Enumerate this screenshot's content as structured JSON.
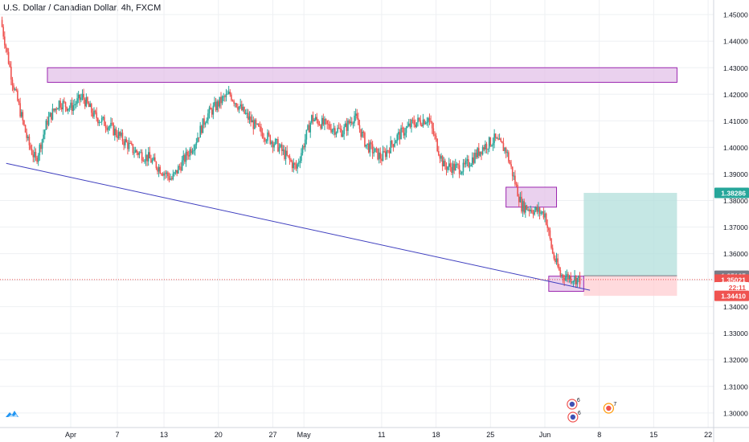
{
  "header": {
    "symbol_title": "U.S. Dollar / Canadian Dollar, 4h, FXCM"
  },
  "colors": {
    "up": "#26a69a",
    "down": "#ef5350",
    "zone_fill": "#e1bee7",
    "zone_stroke": "#9c27b0",
    "trendline": "#3f3fbf",
    "target_fill": "#b2dfdb",
    "stop_fill": "#ffcdd2",
    "grid": "#eef0f3",
    "axis_text": "#131722"
  },
  "chart_data": {
    "type": "candlestick",
    "y_axis": {
      "ylim": [
        1.2945,
        1.4555
      ],
      "ticks": [
        "1.45000",
        "1.44000",
        "1.43000",
        "1.42000",
        "1.41000",
        "1.40000",
        "1.39000",
        "1.38000",
        "1.37000",
        "1.36000",
        "1.35000",
        "1.34000",
        "1.33000",
        "1.32000",
        "1.31000",
        "1.30000"
      ],
      "tick_values": [
        1.45,
        1.44,
        1.43,
        1.42,
        1.41,
        1.4,
        1.39,
        1.38,
        1.37,
        1.36,
        1.35,
        1.34,
        1.33,
        1.32,
        1.31,
        1.3
      ]
    },
    "x_axis": {
      "ticks": [
        "Apr",
        "7",
        "13",
        "20",
        "27",
        "May",
        "11",
        "18",
        "25",
        "Jun",
        "8",
        "15",
        "22"
      ],
      "tick_days": [
        0,
        6,
        12,
        19,
        26,
        30,
        40,
        47,
        54,
        61,
        68,
        75,
        82
      ]
    },
    "price_labels": [
      {
        "text": "1.38286",
        "value": 1.38286,
        "bg": "#26a69a",
        "fg": "#ffffff"
      },
      {
        "text": "1.35165",
        "value": 1.35165,
        "bg": "#787b86",
        "fg": "#ffffff"
      },
      {
        "text": "1.35021",
        "value": 1.35021,
        "bg": "#ef5350",
        "fg": "#ffffff"
      },
      {
        "text": "22:11",
        "value": 1.3473,
        "bg": "#ffffff",
        "fg": "#ef5350"
      },
      {
        "text": "1.34410",
        "value": 1.3441,
        "bg": "#ef5350",
        "fg": "#ffffff"
      }
    ],
    "current_price": 1.35021,
    "resistance_zone": {
      "x_start_day": -3,
      "x_end_day": 78,
      "y_low": 1.4245,
      "y_high": 1.43
    },
    "supply_zone": {
      "x_start_day": 56,
      "x_end_day": 62.5,
      "y_low": 1.3775,
      "y_high": 1.385
    },
    "support_zone": {
      "x_start_day": 61.5,
      "x_end_day": 66,
      "y_low": 1.3458,
      "y_high": 1.3515
    },
    "trendline": {
      "x0_day": -8.3,
      "y0": 1.394,
      "x1_day": 66.8,
      "y1": 1.3462
    },
    "position": {
      "x_start_day": 66,
      "x_end_day": 78,
      "entry": 1.35165,
      "target": 1.38286,
      "stop": 1.3441
    },
    "price_path": {
      "start_day": -9,
      "end_day": 65.5,
      "days": [
        -9,
        -7.5,
        -5.5,
        -4.5,
        -3,
        -1.5,
        0,
        1.5,
        3,
        5,
        8,
        10,
        13,
        16,
        17.5,
        19.5,
        20.5,
        22,
        24,
        26.5,
        29,
        31,
        33,
        35,
        36.5,
        38,
        40,
        42,
        44,
        46,
        48,
        50.5,
        53,
        54.5,
        56,
        58,
        60,
        61,
        62,
        63,
        65.5
      ],
      "closes": [
        1.448,
        1.425,
        1.402,
        1.395,
        1.41,
        1.417,
        1.415,
        1.419,
        1.412,
        1.408,
        1.399,
        1.396,
        1.388,
        1.402,
        1.412,
        1.418,
        1.42,
        1.414,
        1.407,
        1.401,
        1.392,
        1.411,
        1.408,
        1.406,
        1.412,
        1.401,
        1.396,
        1.404,
        1.409,
        1.411,
        1.393,
        1.392,
        1.4,
        1.403,
        1.399,
        1.378,
        1.376,
        1.375,
        1.36,
        1.352,
        1.3502
      ]
    },
    "event_markers": [
      {
        "label": "6",
        "flag": "us-flag",
        "x_day": 64.5
      },
      {
        "label": "6",
        "flag": "us-flag",
        "x_day": 64.5
      },
      {
        "label": "7",
        "flag": "ca-flag",
        "x_day": 69
      }
    ]
  }
}
